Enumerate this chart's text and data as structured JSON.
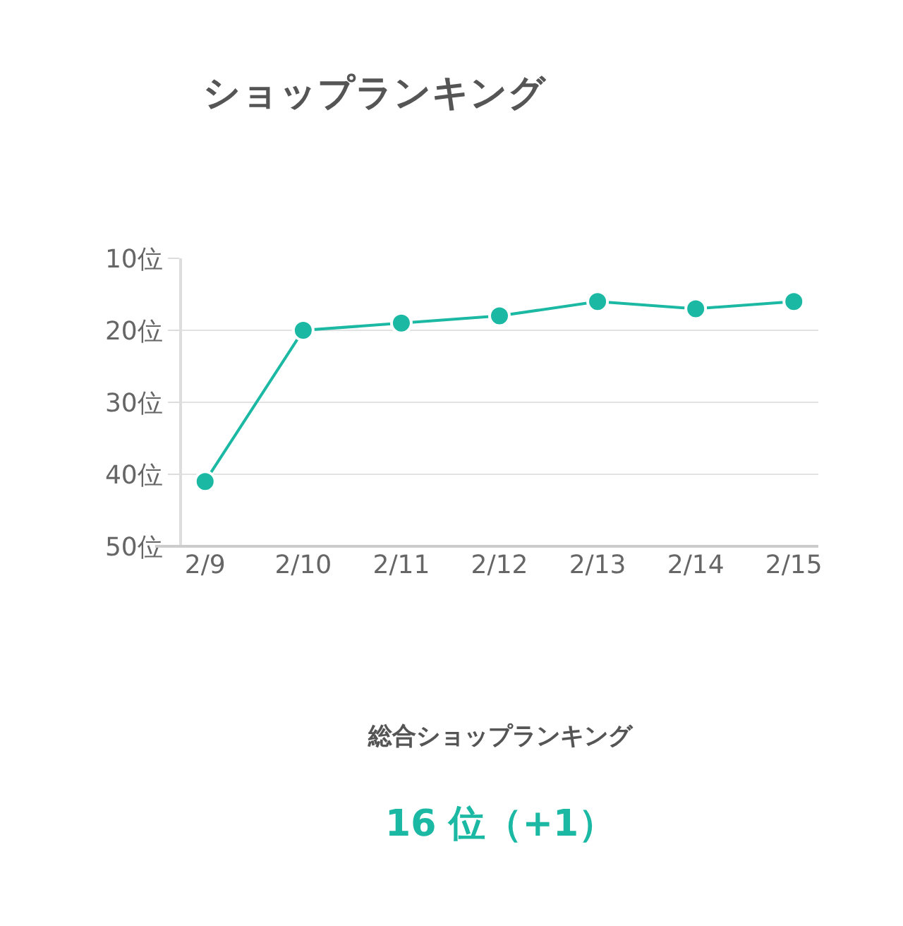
{
  "chart_data": {
    "type": "line",
    "title": "ショップランキング",
    "categories": [
      "2/9",
      "2/10",
      "2/11",
      "2/12",
      "2/13",
      "2/14",
      "2/15"
    ],
    "series": [
      {
        "color": "#1bb9a3",
        "values": [
          41,
          20,
          19,
          18,
          16,
          17,
          16
        ]
      }
    ],
    "ylim": [
      50,
      10
    ],
    "yticks": [
      {
        "value": 10,
        "label": "10位"
      },
      {
        "value": 20,
        "label": "20位"
      },
      {
        "value": 30,
        "label": "30位"
      },
      {
        "value": 40,
        "label": "40位"
      },
      {
        "value": 50,
        "label": "50位"
      }
    ],
    "grid": "y",
    "marker": "circle",
    "line_style": "solid",
    "legend": false,
    "annotations": [
      "総合ショップランキング",
      "16 位（+1）"
    ]
  }
}
